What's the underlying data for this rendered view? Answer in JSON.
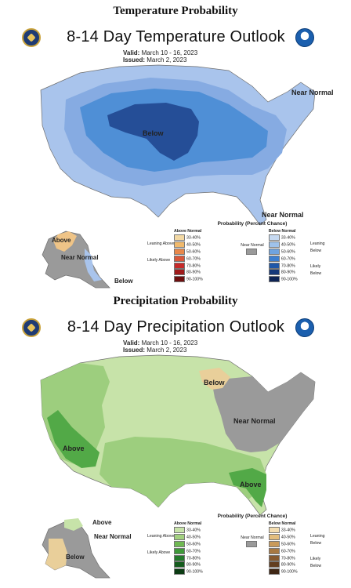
{
  "temperature": {
    "section_title": "Temperature Probability",
    "map_title": "8-14 Day Temperature Outlook",
    "valid_label": "Valid:",
    "valid_value": "March 10 - 16, 2023",
    "issued_label": "Issued:",
    "issued_value": "March 2, 2023",
    "region_labels": {
      "below_main": "Below",
      "near_normal_ne": "Near Normal",
      "near_normal_se": "Near Normal",
      "above_ak": "Above",
      "near_normal_ak": "Near Normal",
      "below_ak": "Below"
    },
    "legend": {
      "title": "Probability (Percent Chance)",
      "col_left": "Above Normal",
      "col_right": "Below Normal",
      "leaning_left": "Leaning Above",
      "likely_left": "Likely Above",
      "leaning_right": "Leaning Below",
      "likely_right": "Likely Below",
      "near_normal": "Near Normal",
      "ranges": [
        "33-40%",
        "40-50%",
        "50-60%",
        "60-70%",
        "70-80%",
        "80-90%",
        "90-100%"
      ],
      "colors_left": [
        "#f3d9a4",
        "#f0b96c",
        "#e8884b",
        "#d9573a",
        "#c62a2a",
        "#a01b1b",
        "#6e0f0f"
      ],
      "colors_right": [
        "#c6d9f1",
        "#9fc2ea",
        "#6fa3df",
        "#3d7fd0",
        "#1f57a8",
        "#16397a",
        "#0e2455"
      ],
      "near_color": "#9a9a9a"
    },
    "colors": {
      "leaning_below": "#a9c4ec",
      "below_40": "#86abe2",
      "below_50": "#4f8fd6",
      "below_60": "#254e97",
      "near_normal": "#9a9a9a",
      "above": "#efc487"
    }
  },
  "precipitation": {
    "section_title": "Precipitation Probability",
    "map_title": "8-14 Day Precipitation Outlook",
    "valid_label": "Valid:",
    "valid_value": "March 10 - 16, 2023",
    "issued_label": "Issued:",
    "issued_value": "March 2, 2023",
    "region_labels": {
      "below_gl": "Below",
      "near_normal_e": "Near Normal",
      "above_ca": "Above",
      "above_se": "Above",
      "above_ak": "Above",
      "near_normal_ak": "Near Normal",
      "below_ak": "Below"
    },
    "legend": {
      "title": "Probability (Percent Chance)",
      "col_left": "Above Normal",
      "col_right": "Below Normal",
      "leaning_left": "Leaning Above",
      "likely_left": "Likely Above",
      "leaning_right": "Leaning Below",
      "likely_right": "Likely Below",
      "near_normal": "Near Normal",
      "ranges": [
        "33-40%",
        "40-50%",
        "50-60%",
        "60-70%",
        "70-80%",
        "80-90%",
        "90-100%"
      ],
      "colors_left": [
        "#c7e3a9",
        "#a2d07f",
        "#6fb852",
        "#3f9a3a",
        "#237a2b",
        "#155c1e",
        "#0b3b12"
      ],
      "colors_right": [
        "#f3ddb0",
        "#e2bd7d",
        "#c99a5a",
        "#a77842",
        "#86592f",
        "#623e20",
        "#3f2614"
      ],
      "near_color": "#9a9a9a"
    },
    "colors": {
      "leaning_above": "#c7e3a9",
      "above_40": "#9dce7e",
      "above_50": "#52a947",
      "near_normal": "#9a9a9a",
      "below": "#e9cf9a"
    }
  }
}
